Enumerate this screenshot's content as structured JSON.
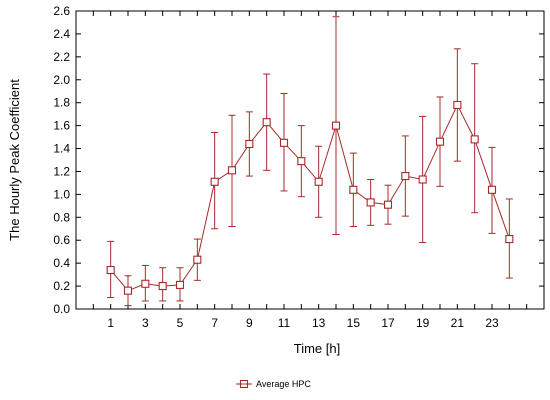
{
  "chart_data": {
    "type": "line",
    "title": "",
    "xlabel": "Time [h]",
    "ylabel": "The Hourly Peak Coefficient",
    "xlim": [
      -1,
      26
    ],
    "ylim": [
      0,
      2.6
    ],
    "x_ticks": [
      1,
      3,
      5,
      7,
      9,
      11,
      13,
      15,
      17,
      19,
      21,
      23
    ],
    "y_ticks": [
      "0.0",
      "0.2",
      "0.4",
      "0.6",
      "0.8",
      "1.0",
      "1.2",
      "1.4",
      "1.6",
      "1.8",
      "2.0",
      "2.2",
      "2.4",
      "2.6"
    ],
    "grid": false,
    "legend_position": "bottom",
    "series": [
      {
        "name": "Average HPC",
        "color": "#a52a2a",
        "marker": "square",
        "x": [
          1,
          2,
          3,
          4,
          5,
          6,
          7,
          8,
          9,
          10,
          11,
          12,
          13,
          14,
          15,
          16,
          17,
          18,
          19,
          20,
          21,
          22,
          23,
          24
        ],
        "y": [
          0.34,
          0.16,
          0.22,
          0.2,
          0.21,
          0.43,
          1.11,
          1.21,
          1.44,
          1.63,
          1.45,
          1.29,
          1.11,
          1.6,
          1.04,
          0.93,
          0.91,
          1.16,
          1.13,
          1.46,
          1.78,
          1.48,
          1.04,
          0.61
        ],
        "err_low": [
          0.1,
          0.03,
          0.07,
          0.07,
          0.07,
          0.25,
          0.7,
          0.72,
          1.16,
          1.21,
          1.03,
          0.98,
          0.8,
          0.65,
          0.72,
          0.73,
          0.74,
          0.81,
          0.58,
          1.07,
          1.29,
          0.84,
          0.66,
          0.27
        ],
        "err_high": [
          0.59,
          0.29,
          0.38,
          0.36,
          0.36,
          0.61,
          1.54,
          1.69,
          1.72,
          2.05,
          1.88,
          1.6,
          1.42,
          2.55,
          1.36,
          1.13,
          1.08,
          1.51,
          1.68,
          1.85,
          2.27,
          2.14,
          1.41,
          0.96
        ]
      }
    ]
  }
}
